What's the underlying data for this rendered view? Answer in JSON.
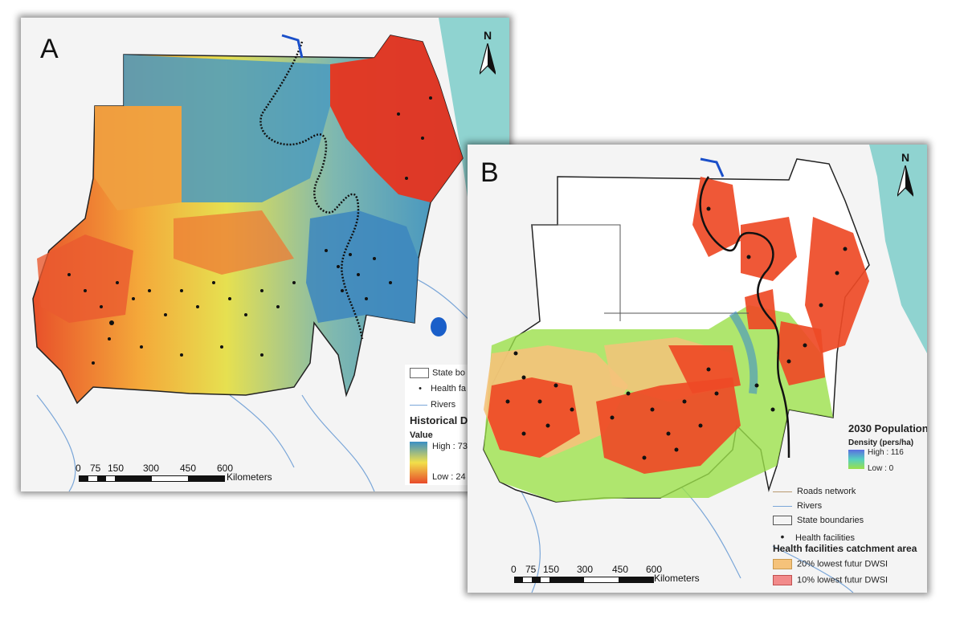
{
  "panel_a": {
    "letter": "A",
    "north": "N",
    "legend": {
      "state_boundaries": "State bo",
      "health_facilities": "Health fa",
      "rivers": "Rivers",
      "title": "Historical D",
      "value_label": "Value",
      "high": "High : 73",
      "low": "Low : 24"
    },
    "scale": {
      "ticks": [
        "0",
        "75",
        "150",
        "300",
        "450",
        "600"
      ],
      "unit": "Kilometers"
    }
  },
  "panel_b": {
    "letter": "B",
    "north": "N",
    "legend": {
      "title": "2030 Population",
      "density_label": "Density (pers/ha)",
      "high": "High : 116",
      "low": "Low : 0",
      "roads": "Roads network",
      "rivers": "Rivers",
      "state_boundaries": "State boundaries",
      "health_facilities": "Health facilities",
      "catchment_title": "Health facilities catchment area",
      "dwsi20": "20% lowest futur DWSI",
      "dwsi10": "10% lowest futur DWSI"
    },
    "scale": {
      "ticks": [
        "0",
        "75",
        "150",
        "300",
        "450",
        "600"
      ],
      "unit": "Kilometers"
    }
  },
  "colors": {
    "sea": "#8fd3d0",
    "land_gray": "#e8e8e8",
    "river": "#7aa6d8",
    "nile": "#1a4fc9",
    "hot": "#e8452a",
    "warm": "#f2a33a",
    "yellow": "#f2e34a",
    "cool": "#3d8fc1",
    "green": "#8fe040",
    "catchment20": "#f5c27a",
    "catchment10": "#f28a8a"
  }
}
